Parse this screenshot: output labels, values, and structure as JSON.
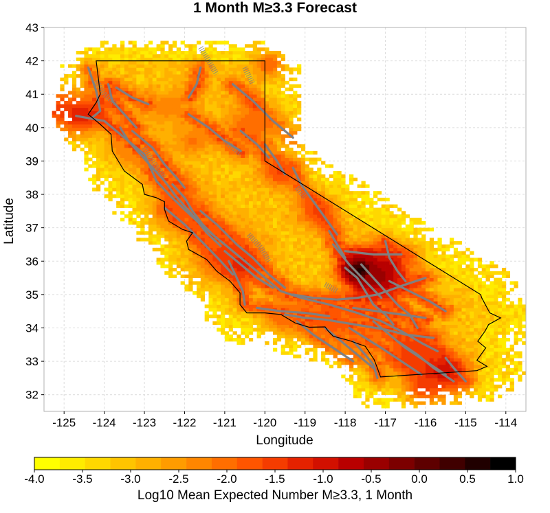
{
  "chart_data": {
    "type": "heatmap",
    "title": "1 Month M≥3.3 Forecast",
    "xlabel": "Longitude",
    "ylabel": "Latitude",
    "xlim": [
      -125.5,
      -113.5
    ],
    "ylim": [
      31.5,
      43
    ],
    "x_ticks": [
      -125,
      -124,
      -123,
      -122,
      -121,
      -120,
      -119,
      -118,
      -117,
      -116,
      -115,
      -114
    ],
    "y_ticks": [
      32,
      33,
      34,
      35,
      36,
      37,
      38,
      39,
      40,
      41,
      42,
      43
    ],
    "x_tick_labels": [
      "-125",
      "-124",
      "-123",
      "-122",
      "-121",
      "-120",
      "-119",
      "-118",
      "-117",
      "-116",
      "-115",
      "-114"
    ],
    "y_tick_labels": [
      "32",
      "33",
      "34",
      "35",
      "36",
      "37",
      "38",
      "39",
      "40",
      "41",
      "42",
      "43"
    ],
    "grid": true,
    "colorbar": {
      "title": "Log10 Mean Expected Number M≥3.3, 1 Month",
      "min": -4.0,
      "max": 1.0,
      "tick_labels": [
        "-4.0",
        "-3.5",
        "-3.0",
        "-2.5",
        "-2.0",
        "-1.5",
        "-1.0",
        "-0.5",
        "0.0",
        "0.5",
        "1.0"
      ],
      "colors": [
        "#ffff00",
        "#ffec00",
        "#ffd800",
        "#ffc400",
        "#ffb000",
        "#ff9c00",
        "#ff8600",
        "#ff6e00",
        "#ff5500",
        "#f53c00",
        "#e52200",
        "#d21000",
        "#b80000",
        "#9a0000",
        "#7c0000",
        "#5e0000",
        "#400000",
        "#200000",
        "#000000"
      ]
    },
    "colors": {
      "fault": "#808080",
      "state_border": "#000000",
      "grid": "#dcdcdc"
    },
    "hotspots": [
      {
        "lon": -117.65,
        "lat": 35.75,
        "value": 0.6,
        "spread": 0.3
      },
      {
        "lon": -117.2,
        "lat": 35.6,
        "value": -0.4,
        "spread": 0.5
      },
      {
        "lon": -124.6,
        "lat": 40.4,
        "value": -1.2,
        "spread": 0.45
      },
      {
        "lon": -125.3,
        "lat": 40.6,
        "value": -1.4,
        "spread": 0.35
      },
      {
        "lon": -121.0,
        "lat": 36.2,
        "value": -1.6,
        "spread": 0.6
      },
      {
        "lon": -120.6,
        "lat": 35.9,
        "value": -1.3,
        "spread": 0.3
      },
      {
        "lon": -122.1,
        "lat": 37.6,
        "value": -1.8,
        "spread": 0.5
      },
      {
        "lon": -115.6,
        "lat": 32.7,
        "value": -1.0,
        "spread": 0.45
      },
      {
        "lon": -116.3,
        "lat": 33.3,
        "value": -1.5,
        "spread": 0.45
      },
      {
        "lon": -118.4,
        "lat": 34.3,
        "value": -1.8,
        "spread": 0.45
      },
      {
        "lon": -119.6,
        "lat": 38.7,
        "value": -1.6,
        "spread": 0.35
      },
      {
        "lon": -118.7,
        "lat": 37.5,
        "value": -1.6,
        "spread": 0.35
      },
      {
        "lon": -116.6,
        "lat": 36.1,
        "value": -1.7,
        "spread": 0.3
      },
      {
        "lon": -116.0,
        "lat": 32.3,
        "value": -1.5,
        "spread": 0.4
      },
      {
        "lon": -120.3,
        "lat": 40.1,
        "value": -2.0,
        "spread": 0.5
      },
      {
        "lon": -122.4,
        "lat": 40.6,
        "value": -2.3,
        "spread": 0.4
      },
      {
        "lon": -121.8,
        "lat": 39.6,
        "value": -2.1,
        "spread": 0.3
      },
      {
        "lon": -119.9,
        "lat": 41.9,
        "value": -1.9,
        "spread": 0.3
      },
      {
        "lon": -119.5,
        "lat": 34.3,
        "value": -1.9,
        "spread": 0.35
      },
      {
        "lon": -117.6,
        "lat": 34.2,
        "value": -1.9,
        "spread": 0.45
      },
      {
        "lon": -123.4,
        "lat": 39.4,
        "value": -2.2,
        "spread": 0.4
      }
    ],
    "state_outline": [
      [
        -124.2,
        42.0
      ],
      [
        -120.0,
        42.0
      ],
      [
        -120.0,
        39.0
      ],
      [
        -114.63,
        35.0
      ],
      [
        -114.6,
        34.9
      ],
      [
        -114.4,
        34.45
      ],
      [
        -114.13,
        34.3
      ],
      [
        -114.43,
        34.1
      ],
      [
        -114.52,
        33.9
      ],
      [
        -114.7,
        33.6
      ],
      [
        -114.5,
        33.4
      ],
      [
        -114.72,
        33.03
      ],
      [
        -114.47,
        32.85
      ],
      [
        -114.72,
        32.72
      ],
      [
        -117.12,
        32.53
      ],
      [
        -117.2,
        32.8
      ],
      [
        -117.28,
        33.05
      ],
      [
        -117.5,
        33.45
      ],
      [
        -117.9,
        33.62
      ],
      [
        -118.3,
        33.75
      ],
      [
        -118.42,
        33.9
      ],
      [
        -118.5,
        34.03
      ],
      [
        -118.9,
        34.02
      ],
      [
        -119.25,
        34.15
      ],
      [
        -119.6,
        34.4
      ],
      [
        -120.0,
        34.45
      ],
      [
        -120.45,
        34.45
      ],
      [
        -120.62,
        34.7
      ],
      [
        -120.62,
        35.05
      ],
      [
        -120.87,
        35.4
      ],
      [
        -121.2,
        35.7
      ],
      [
        -121.45,
        36.05
      ],
      [
        -121.9,
        36.35
      ],
      [
        -121.95,
        36.6
      ],
      [
        -121.8,
        36.85
      ],
      [
        -122.05,
        36.95
      ],
      [
        -122.4,
        37.2
      ],
      [
        -122.5,
        37.55
      ],
      [
        -122.5,
        37.78
      ],
      [
        -122.7,
        37.9
      ],
      [
        -123.0,
        38.0
      ],
      [
        -123.05,
        38.3
      ],
      [
        -123.5,
        38.7
      ],
      [
        -123.8,
        39.3
      ],
      [
        -123.83,
        39.8
      ],
      [
        -124.1,
        40.1
      ],
      [
        -124.4,
        40.4
      ],
      [
        -124.2,
        40.75
      ],
      [
        -124.1,
        41.0
      ],
      [
        -124.15,
        41.5
      ],
      [
        -124.2,
        42.0
      ]
    ],
    "faults": [
      [
        [
          -124.7,
          40.35
        ],
        [
          -124.0,
          40.2
        ],
        [
          -123.0,
          39.2
        ],
        [
          -122.7,
          38.4
        ],
        [
          -122.35,
          37.95
        ],
        [
          -122.05,
          37.6
        ],
        [
          -121.6,
          37.1
        ],
        [
          -121.1,
          36.6
        ],
        [
          -120.6,
          36.1
        ],
        [
          -120.1,
          35.6
        ],
        [
          -119.6,
          35.1
        ],
        [
          -119.1,
          34.9
        ],
        [
          -118.4,
          34.7
        ],
        [
          -117.7,
          34.45
        ],
        [
          -117.1,
          34.2
        ],
        [
          -116.6,
          33.9
        ],
        [
          -116.1,
          33.55
        ],
        [
          -115.7,
          33.3
        ]
      ],
      [
        [
          -123.6,
          40.0
        ],
        [
          -123.4,
          39.6
        ],
        [
          -123.1,
          39.2
        ],
        [
          -122.8,
          38.8
        ],
        [
          -122.5,
          38.4
        ],
        [
          -122.25,
          38.0
        ],
        [
          -122.0,
          37.65
        ],
        [
          -121.75,
          37.3
        ],
        [
          -121.45,
          36.85
        ],
        [
          -121.1,
          36.45
        ]
      ],
      [
        [
          -122.3,
          38.3
        ],
        [
          -122.0,
          37.9
        ],
        [
          -121.8,
          37.5
        ],
        [
          -121.55,
          37.1
        ],
        [
          -121.3,
          36.8
        ]
      ],
      [
        [
          -124.4,
          41.8
        ],
        [
          -124.2,
          41.1
        ],
        [
          -124.1,
          40.5
        ],
        [
          -124.3,
          40.3
        ]
      ],
      [
        [
          -123.9,
          41.3
        ],
        [
          -123.8,
          40.8
        ],
        [
          -123.5,
          40.4
        ],
        [
          -123.2,
          40.0
        ]
      ],
      [
        [
          -123.3,
          39.9
        ],
        [
          -122.8,
          39.4
        ],
        [
          -122.5,
          38.9
        ],
        [
          -122.2,
          38.5
        ],
        [
          -122.0,
          38.2
        ]
      ],
      [
        [
          -121.6,
          37.5
        ],
        [
          -121.2,
          37.1
        ],
        [
          -120.7,
          36.5
        ],
        [
          -120.3,
          36.1
        ],
        [
          -119.9,
          35.6
        ],
        [
          -119.5,
          35.2
        ]
      ],
      [
        [
          -121.0,
          36.3
        ],
        [
          -120.6,
          35.9
        ],
        [
          -120.2,
          35.5
        ],
        [
          -119.8,
          35.2
        ]
      ],
      [
        [
          -120.9,
          36.0
        ],
        [
          -120.7,
          35.5
        ],
        [
          -120.55,
          35.1
        ],
        [
          -120.5,
          34.7
        ]
      ],
      [
        [
          -122.5,
          37.6
        ],
        [
          -122.0,
          37.1
        ],
        [
          -121.5,
          36.5
        ],
        [
          -121.1,
          36.0
        ],
        [
          -120.8,
          35.6
        ]
      ],
      [
        [
          -119.3,
          35.0
        ],
        [
          -118.8,
          34.9
        ],
        [
          -118.2,
          34.85
        ],
        [
          -117.7,
          34.9
        ],
        [
          -117.2,
          35.0
        ],
        [
          -116.5,
          35.3
        ],
        [
          -116.0,
          35.5
        ]
      ],
      [
        [
          -118.0,
          35.8
        ],
        [
          -117.7,
          35.5
        ],
        [
          -117.5,
          35.1
        ],
        [
          -117.3,
          34.7
        ],
        [
          -117.0,
          34.4
        ],
        [
          -116.8,
          34.1
        ]
      ],
      [
        [
          -117.6,
          35.9
        ],
        [
          -117.3,
          35.5
        ],
        [
          -117.0,
          35.1
        ],
        [
          -116.7,
          34.7
        ],
        [
          -116.4,
          34.4
        ],
        [
          -116.2,
          34.0
        ]
      ],
      [
        [
          -118.3,
          36.5
        ],
        [
          -117.9,
          35.9
        ],
        [
          -117.5,
          35.4
        ],
        [
          -117.1,
          34.9
        ]
      ],
      [
        [
          -118.4,
          36.9
        ],
        [
          -118.2,
          36.5
        ],
        [
          -118.0,
          36.1
        ]
      ],
      [
        [
          -117.0,
          36.6
        ],
        [
          -116.9,
          36.1
        ],
        [
          -116.7,
          35.7
        ],
        [
          -116.5,
          35.4
        ]
      ],
      [
        [
          -116.9,
          35.4
        ],
        [
          -116.4,
          35.1
        ],
        [
          -115.9,
          34.8
        ],
        [
          -115.5,
          34.5
        ]
      ],
      [
        [
          -119.5,
          34.4
        ],
        [
          -119.0,
          34.3
        ],
        [
          -118.5,
          34.25
        ],
        [
          -118.0,
          34.15
        ],
        [
          -117.5,
          34.05
        ],
        [
          -117.0,
          33.95
        ],
        [
          -116.5,
          33.8
        ],
        [
          -115.8,
          33.7
        ]
      ],
      [
        [
          -120.2,
          34.6
        ],
        [
          -119.6,
          34.5
        ],
        [
          -119.0,
          34.45
        ],
        [
          -118.4,
          34.35
        ]
      ],
      [
        [
          -117.9,
          34.0
        ],
        [
          -117.5,
          33.7
        ],
        [
          -117.1,
          33.4
        ],
        [
          -116.6,
          33.0
        ],
        [
          -116.1,
          32.6
        ]
      ],
      [
        [
          -117.3,
          34.2
        ],
        [
          -116.9,
          33.8
        ],
        [
          -116.5,
          33.4
        ],
        [
          -116.0,
          33.0
        ],
        [
          -115.5,
          32.6
        ]
      ],
      [
        [
          -116.7,
          33.6
        ],
        [
          -116.2,
          33.2
        ],
        [
          -115.8,
          32.8
        ],
        [
          -115.3,
          32.4
        ]
      ],
      [
        [
          -117.8,
          33.6
        ],
        [
          -117.5,
          33.2
        ],
        [
          -117.3,
          32.9
        ],
        [
          -117.2,
          32.5
        ]
      ],
      [
        [
          -118.5,
          34.0
        ],
        [
          -118.1,
          33.6
        ],
        [
          -117.7,
          33.2
        ],
        [
          -117.3,
          32.8
        ]
      ],
      [
        [
          -119.2,
          34.2
        ],
        [
          -118.8,
          33.8
        ],
        [
          -118.3,
          33.4
        ],
        [
          -117.8,
          33.0
        ]
      ],
      [
        [
          -115.5,
          33.1
        ],
        [
          -115.3,
          32.8
        ],
        [
          -115.0,
          32.4
        ]
      ],
      [
        [
          -119.3,
          38.8
        ],
        [
          -119.1,
          38.3
        ],
        [
          -118.8,
          37.8
        ],
        [
          -118.5,
          37.3
        ],
        [
          -118.2,
          36.8
        ]
      ],
      [
        [
          -120.0,
          39.5
        ],
        [
          -119.7,
          39.0
        ],
        [
          -119.5,
          38.6
        ]
      ],
      [
        [
          -121.6,
          41.8
        ],
        [
          -121.7,
          41.3
        ],
        [
          -121.9,
          40.9
        ]
      ],
      [
        [
          -120.8,
          41.3
        ],
        [
          -120.3,
          40.8
        ],
        [
          -119.8,
          40.2
        ],
        [
          -119.3,
          39.7
        ]
      ],
      [
        [
          -121.9,
          40.4
        ],
        [
          -121.4,
          40.0
        ],
        [
          -121.0,
          39.6
        ],
        [
          -120.6,
          39.3
        ]
      ],
      [
        [
          -120.6,
          39.9
        ],
        [
          -120.2,
          39.5
        ],
        [
          -119.9,
          39.1
        ]
      ],
      [
        [
          -118.0,
          36.3
        ],
        [
          -117.3,
          36.2
        ],
        [
          -116.6,
          36.2
        ]
      ],
      [
        [
          -117.8,
          34.6
        ],
        [
          -117.2,
          34.5
        ],
        [
          -116.6,
          34.4
        ],
        [
          -116.0,
          34.3
        ]
      ],
      [
        [
          -123.7,
          41.2
        ],
        [
          -123.3,
          40.9
        ],
        [
          -122.9,
          40.7
        ]
      ]
    ],
    "hatched_faults": [
      [
        [
          -124.2,
          41.4
        ],
        [
          -124.0,
          41.0
        ],
        [
          -123.7,
          40.7
        ]
      ],
      [
        [
          -123.0,
          39.4
        ],
        [
          -122.8,
          39.0
        ],
        [
          -122.5,
          38.5
        ]
      ],
      [
        [
          -121.0,
          39.6
        ],
        [
          -120.6,
          39.2
        ]
      ],
      [
        [
          -121.6,
          42.4
        ],
        [
          -121.4,
          42.0
        ],
        [
          -121.2,
          41.6
        ]
      ],
      [
        [
          -120.5,
          41.8
        ],
        [
          -120.3,
          41.3
        ]
      ],
      [
        [
          -120.4,
          36.8
        ],
        [
          -120.1,
          36.4
        ],
        [
          -119.9,
          36.0
        ]
      ],
      [
        [
          -119.2,
          38.2
        ],
        [
          -119.0,
          37.9
        ]
      ],
      [
        [
          -118.5,
          35.3
        ],
        [
          -118.2,
          35.1
        ]
      ]
    ]
  }
}
